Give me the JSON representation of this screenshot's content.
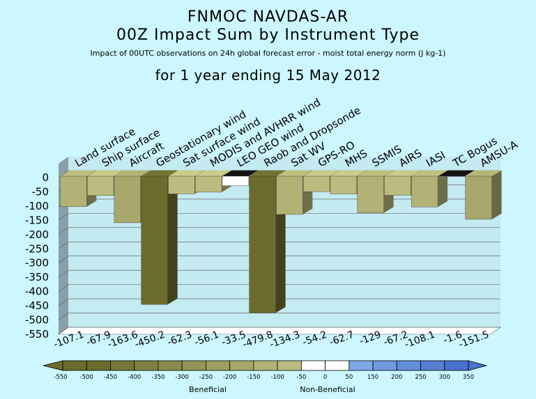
{
  "titles": {
    "line1": "FNMOC NAVDAS-AR",
    "line2": "00Z Impact Sum by Instrument Type",
    "line3": "Impact of 00UTC observations on 24h global forecast error - moist total energy norm (J kg-1)",
    "line4": "for 1 year ending 15 May 2012"
  },
  "chart_data": {
    "type": "bar",
    "title": "00Z Impact Sum by Instrument Type",
    "categories": [
      "Land surface",
      "Ship surface",
      "Aircraft",
      "Geostationary wind",
      "Sat surface wind",
      "MODIS and AVHRR wind",
      "LEO GEO wind",
      "Raob and Dropsonde",
      "Sat WV",
      "GPS-RO",
      "MHS",
      "SSMIS",
      "AIRS",
      "IASI",
      "TC Bogus",
      "AMSU-A"
    ],
    "values": [
      -107.1,
      -67.9,
      -163.6,
      -450.2,
      -62.3,
      -56.1,
      -33.5,
      -479.8,
      -134.3,
      -54.2,
      -62.7,
      -129,
      -67.2,
      -108.1,
      -1.6,
      -151.5
    ],
    "value_labels": [
      "-107.1",
      "-67.9",
      "-163.6",
      "-450.2",
      "-62.3",
      "-56.1",
      "-33.5",
      "-479.8",
      "-134.3",
      "-54.2",
      "-62.7",
      "-129",
      "-67.2",
      "-108.1",
      "-1.6",
      "-151.5"
    ],
    "ylim": [
      -550,
      0
    ],
    "yticks": [
      "0",
      "-50",
      "-100",
      "-150",
      "-200",
      "-250",
      "-300",
      "-350",
      "-400",
      "-450",
      "-500",
      "-550"
    ],
    "grid": true,
    "colorbar": {
      "boundaries": [
        "-550",
        "-500",
        "-450",
        "-400",
        "-350",
        "-300",
        "-250",
        "-200",
        "-150",
        "-100",
        "-50",
        "0",
        "50",
        "150",
        "200",
        "250",
        "300",
        "350"
      ],
      "colors": [
        "#6b6b2e",
        "#6b6b2e",
        "#76763a",
        "#808044",
        "#8a8a4e",
        "#949458",
        "#9e9e62",
        "#a8a86c",
        "#b2b276",
        "#bcbc80",
        "#ffffff",
        "#ffffff",
        "#7da8e3",
        "#6f9ade",
        "#628cd8",
        "#557ed2",
        "#4870cc"
      ],
      "label_beneficial": "Beneficial",
      "label_nonbeneficial": "Non-Beneficial"
    }
  }
}
